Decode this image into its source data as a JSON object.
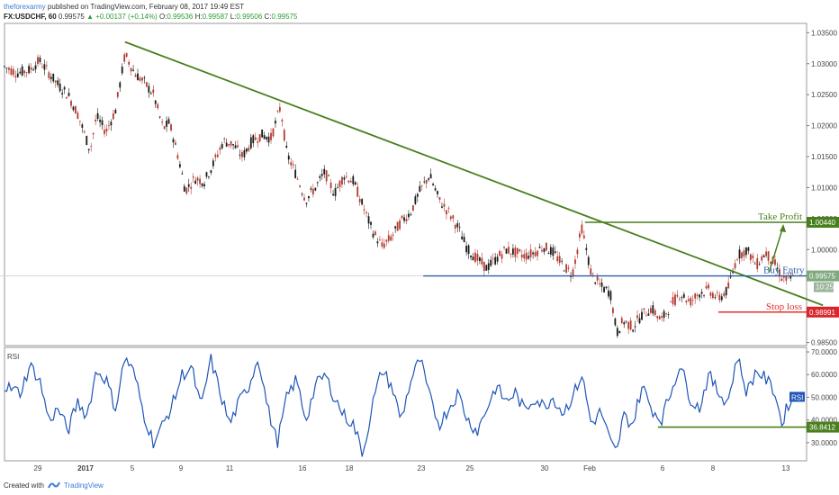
{
  "header": {
    "author": "theforexarmy",
    "published": "published on TradingView.com, February 08, 2017 19:49 EST",
    "symbol": "FX:USDCHF, 60",
    "last": "0.99575",
    "change": "+0.00137 (+0.14%)",
    "ohlc": {
      "o_label": "O:",
      "o": "0.99536",
      "h_label": "H:",
      "h": "0.99587",
      "l_label": "L:",
      "l": "0.99506",
      "c_label": "C:",
      "c": "0.99575"
    }
  },
  "footer": {
    "created_with": "Created with",
    "brand": "TradingView"
  },
  "colors": {
    "candle_up": "#1a1a1a",
    "candle_down": "#b53a2e",
    "trend": "#4a7f1e",
    "buy": "#2a5fa8",
    "stop": "#e0302b",
    "rsi": "#1f55b8",
    "tp": "#4a7f1e"
  },
  "chart_data": [
    {
      "type": "candlestick",
      "symbol": "FX:USDCHF",
      "interval": "60",
      "y_ticks": [
        "1.03500",
        "1.03000",
        "1.02500",
        "1.02000",
        "1.01500",
        "1.01000",
        "1.00500",
        "1.00000",
        "0.98500"
      ],
      "ylim": [
        0.9845,
        1.0365
      ],
      "x_ticks": [
        "29",
        "2017",
        "5",
        "9",
        "11",
        "16",
        "18",
        "23",
        "25",
        "30",
        "Feb",
        "6",
        "8",
        "13"
      ],
      "series_path": [
        [
          0,
          1.0295
        ],
        [
          4,
          1.0285
        ],
        [
          8,
          1.029
        ],
        [
          11,
          1.0305
        ],
        [
          14,
          1.0285
        ],
        [
          17,
          1.0265
        ],
        [
          20,
          1.025
        ],
        [
          23,
          1.022
        ],
        [
          25,
          1.019
        ],
        [
          27,
          1.016
        ],
        [
          29,
          1.0215
        ],
        [
          32,
          1.019
        ],
        [
          35,
          1.0225
        ],
        [
          38,
          1.0315
        ],
        [
          41,
          1.0285
        ],
        [
          44,
          1.027
        ],
        [
          47,
          1.025
        ],
        [
          50,
          1.0195
        ],
        [
          52,
          1.0205
        ],
        [
          55,
          1.0145
        ],
        [
          57,
          1.0095
        ],
        [
          60,
          1.0115
        ],
        [
          63,
          1.011
        ],
        [
          66,
          1.014
        ],
        [
          69,
          1.0175
        ],
        [
          72,
          1.017
        ],
        [
          75,
          1.015
        ],
        [
          78,
          1.0175
        ],
        [
          81,
          1.0185
        ],
        [
          84,
          1.018
        ],
        [
          87,
          1.023
        ],
        [
          89,
          1.0155
        ],
        [
          92,
          1.012
        ],
        [
          95,
          1.008
        ],
        [
          98,
          1.01
        ],
        [
          101,
          1.0125
        ],
        [
          104,
          1.009
        ],
        [
          107,
          1.012
        ],
        [
          110,
          1.011
        ],
        [
          113,
          1.007
        ],
        [
          116,
          1.003
        ],
        [
          119,
          1.0005
        ],
        [
          122,
          1.002
        ],
        [
          125,
          1.0045
        ],
        [
          128,
          1.006
        ],
        [
          131,
          1.0095
        ],
        [
          134,
          1.012
        ],
        [
          137,
          1.008
        ],
        [
          140,
          1.006
        ],
        [
          143,
          1.0035
        ],
        [
          146,
          1.0
        ],
        [
          149,
          0.9985
        ],
        [
          152,
          0.997
        ],
        [
          155,
          0.9985
        ],
        [
          158,
          1.0
        ],
        [
          161,
          0.9995
        ],
        [
          164,
          0.999
        ],
        [
          167,
          0.9995
        ],
        [
          170,
          1.0005
        ],
        [
          173,
          0.9995
        ],
        [
          176,
          0.9975
        ],
        [
          179,
          0.996
        ],
        [
          182,
          1.0035
        ],
        [
          185,
          0.996
        ],
        [
          188,
          0.994
        ],
        [
          191,
          0.993
        ],
        [
          193,
          0.9865
        ],
        [
          195,
          0.9885
        ],
        [
          198,
          0.9875
        ],
        [
          201,
          0.9895
        ],
        [
          204,
          0.9905
        ],
        [
          207,
          0.9885
        ],
        [
          210,
          0.991
        ],
        [
          213,
          0.993
        ],
        [
          216,
          0.9915
        ],
        [
          219,
          0.993
        ],
        [
          222,
          0.9935
        ],
        [
          225,
          0.992
        ],
        [
          228,
          0.9935
        ],
        [
          231,
          0.999
        ],
        [
          234,
          1.0
        ],
        [
          237,
          0.9975
        ],
        [
          240,
          0.9995
        ],
        [
          243,
          0.9975
        ],
        [
          245,
          0.9955
        ],
        [
          247,
          0.995
        ],
        [
          249,
          0.9957
        ]
      ]
    },
    {
      "type": "line",
      "name": "RSI",
      "y_ticks": [
        "70.0000",
        "60.0000",
        "50.0000",
        "40.0000",
        "30.0000"
      ],
      "ylim": [
        22,
        72
      ],
      "series_path": [
        [
          0,
          55
        ],
        [
          5,
          52
        ],
        [
          8,
          64
        ],
        [
          11,
          58
        ],
        [
          14,
          40
        ],
        [
          17,
          45
        ],
        [
          20,
          35
        ],
        [
          23,
          48
        ],
        [
          26,
          42
        ],
        [
          29,
          62
        ],
        [
          32,
          58
        ],
        [
          35,
          45
        ],
        [
          38,
          68
        ],
        [
          41,
          60
        ],
        [
          44,
          42
        ],
        [
          47,
          30
        ],
        [
          50,
          38
        ],
        [
          53,
          47
        ],
        [
          56,
          60
        ],
        [
          59,
          63
        ],
        [
          62,
          45
        ],
        [
          65,
          67
        ],
        [
          68,
          52
        ],
        [
          71,
          38
        ],
        [
          74,
          48
        ],
        [
          77,
          55
        ],
        [
          80,
          68
        ],
        [
          83,
          45
        ],
        [
          86,
          30
        ],
        [
          89,
          50
        ],
        [
          92,
          58
        ],
        [
          95,
          40
        ],
        [
          98,
          55
        ],
        [
          101,
          60
        ],
        [
          104,
          50
        ],
        [
          107,
          42
        ],
        [
          110,
          38
        ],
        [
          113,
          25
        ],
        [
          116,
          47
        ],
        [
          119,
          62
        ],
        [
          122,
          55
        ],
        [
          125,
          40
        ],
        [
          128,
          57
        ],
        [
          131,
          67
        ],
        [
          134,
          50
        ],
        [
          137,
          38
        ],
        [
          140,
          45
        ],
        [
          143,
          52
        ],
        [
          146,
          40
        ],
        [
          149,
          35
        ],
        [
          152,
          45
        ],
        [
          155,
          55
        ],
        [
          158,
          48
        ],
        [
          161,
          52
        ],
        [
          164,
          44
        ],
        [
          167,
          50
        ],
        [
          170,
          46
        ],
        [
          173,
          50
        ],
        [
          176,
          43
        ],
        [
          179,
          50
        ],
        [
          182,
          60
        ],
        [
          185,
          38
        ],
        [
          188,
          44
        ],
        [
          191,
          30
        ],
        [
          193,
          25
        ],
        [
          195,
          42
        ],
        [
          198,
          38
        ],
        [
          201,
          55
        ],
        [
          204,
          45
        ],
        [
          207,
          40
        ],
        [
          210,
          52
        ],
        [
          213,
          65
        ],
        [
          216,
          50
        ],
        [
          219,
          45
        ],
        [
          222,
          60
        ],
        [
          225,
          52
        ],
        [
          228,
          48
        ],
        [
          231,
          68
        ],
        [
          234,
          52
        ],
        [
          237,
          62
        ],
        [
          240,
          58
        ],
        [
          243,
          52
        ],
        [
          245,
          38
        ],
        [
          247,
          47
        ],
        [
          249,
          50
        ]
      ],
      "last_label": "RSI"
    }
  ],
  "annotations": {
    "take_profit": {
      "label": "Take Profit",
      "price": 1.0044,
      "price_label": "1.00440"
    },
    "buy_entry": {
      "label": "Buy Entry",
      "price": 0.99575,
      "price_label": "0.99575",
      "time_label": "10:25"
    },
    "stop_loss": {
      "label": "Stop loss",
      "price": 0.98991,
      "price_label": "0.98991"
    },
    "rsi_level": {
      "value": 36.8412,
      "label": "36.8412"
    },
    "trendline": {
      "from": [
        38,
        1.0335
      ],
      "to": [
        258,
        0.991
      ]
    },
    "resistance_top": {
      "from": [
        183,
        1.0044
      ],
      "to": [
        258,
        1.0044
      ]
    }
  }
}
